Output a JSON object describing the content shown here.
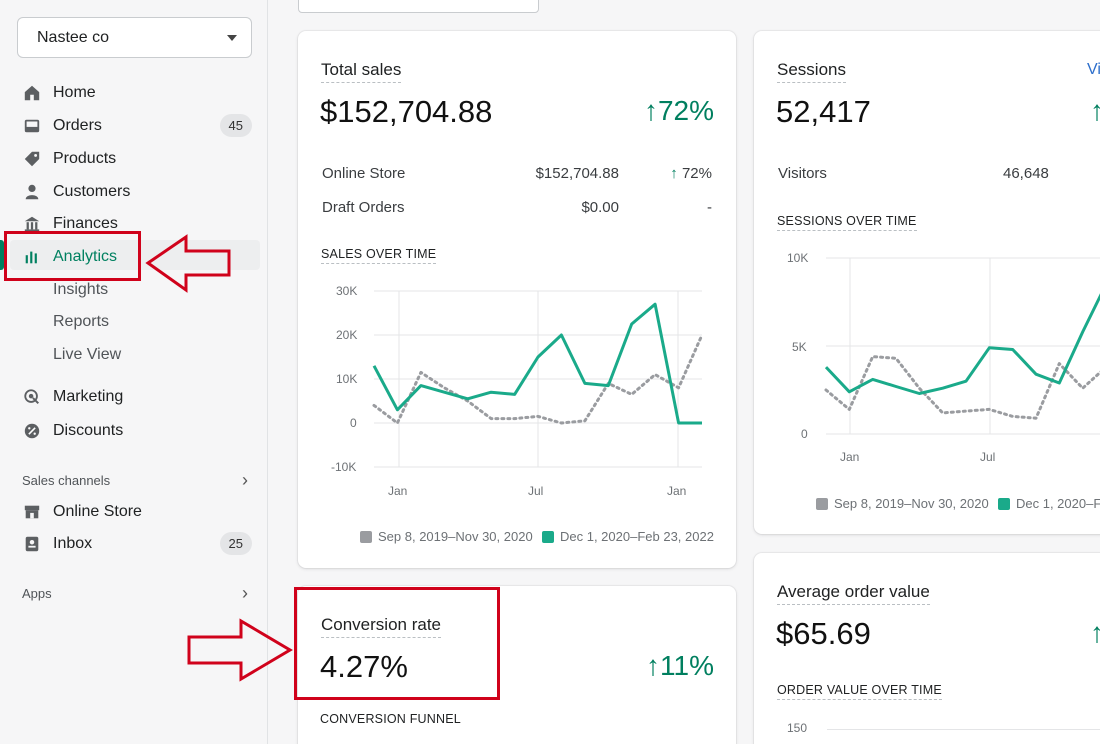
{
  "store": {
    "name": "Nastee co"
  },
  "nav": {
    "home": "Home",
    "orders": "Orders",
    "orders_badge": "45",
    "products": "Products",
    "customers": "Customers",
    "finances": "Finances",
    "analytics": "Analytics",
    "insights": "Insights",
    "reports": "Reports",
    "live_view": "Live View",
    "marketing": "Marketing",
    "discounts": "Discounts",
    "sales_channels": "Sales channels",
    "online_store": "Online Store",
    "inbox": "Inbox",
    "inbox_badge": "25",
    "apps": "Apps"
  },
  "colors": {
    "accent": "#008060",
    "series_current": "#1aaa8a",
    "series_previous": "#9a9ca0",
    "annotation": "#d0021b"
  },
  "total_sales": {
    "title": "Total sales",
    "value": "$152,704.88",
    "change": "72%",
    "rows": [
      {
        "label": "Online Store",
        "value": "$152,704.88",
        "change": "72%"
      },
      {
        "label": "Draft Orders",
        "value": "$0.00",
        "change": "-"
      }
    ],
    "chart_title": "SALES OVER TIME"
  },
  "sessions": {
    "title": "Sessions",
    "link": "Vi",
    "value": "52,417",
    "rows": [
      {
        "label": "Visitors",
        "value": "46,648"
      }
    ],
    "chart_title": "SESSIONS OVER TIME"
  },
  "conversion": {
    "title": "Conversion rate",
    "value": "4.27%",
    "change": "11%",
    "funnel_title": "CONVERSION FUNNEL"
  },
  "aov": {
    "title": "Average order value",
    "value": "$65.69",
    "chart_title": "ORDER VALUE OVER TIME",
    "axis_top": "150"
  },
  "legend": {
    "previous": "Sep 8, 2019–Nov 30, 2020",
    "current": "Dec 1, 2020–Feb 23, 2022",
    "current_truncated": "Dec 1, 2020–F"
  },
  "chart_data": [
    {
      "type": "line",
      "title": "SALES OVER TIME",
      "yticks": [
        "30K",
        "20K",
        "10K",
        "0",
        "-10K"
      ],
      "ylim": [
        -10000,
        30000
      ],
      "xticks": [
        "Jan",
        "Jul",
        "Jan"
      ],
      "series": [
        {
          "name": "Dec 1, 2020–Feb 23, 2022",
          "values": [
            13000,
            3000,
            8500,
            7000,
            5500,
            7000,
            6500,
            15000,
            20000,
            9000,
            8500,
            22500,
            27000,
            0,
            0
          ]
        },
        {
          "name": "Sep 8, 2019–Nov 30, 2020",
          "values": [
            4000,
            0,
            11500,
            8000,
            5000,
            1000,
            1000,
            1500,
            0,
            500,
            9000,
            6500,
            11000,
            8000,
            20000
          ]
        }
      ],
      "grid": true
    },
    {
      "type": "line",
      "title": "SESSIONS OVER TIME",
      "yticks": [
        "10K",
        "5K",
        "0"
      ],
      "ylim": [
        0,
        10000
      ],
      "xticks": [
        "Jan",
        "Jul"
      ],
      "series": [
        {
          "name": "Dec 1, 2020–Feb 23, 2022",
          "values": [
            3800,
            2400,
            3100,
            2700,
            2300,
            2600,
            3000,
            4900,
            4800,
            3400,
            2900,
            5800,
            8500
          ]
        },
        {
          "name": "Sep 8, 2019–Nov 30, 2020",
          "values": [
            2500,
            1400,
            4400,
            4300,
            2600,
            1200,
            1300,
            1400,
            1000,
            900,
            4000,
            2600,
            3800
          ]
        }
      ],
      "grid": true
    }
  ]
}
